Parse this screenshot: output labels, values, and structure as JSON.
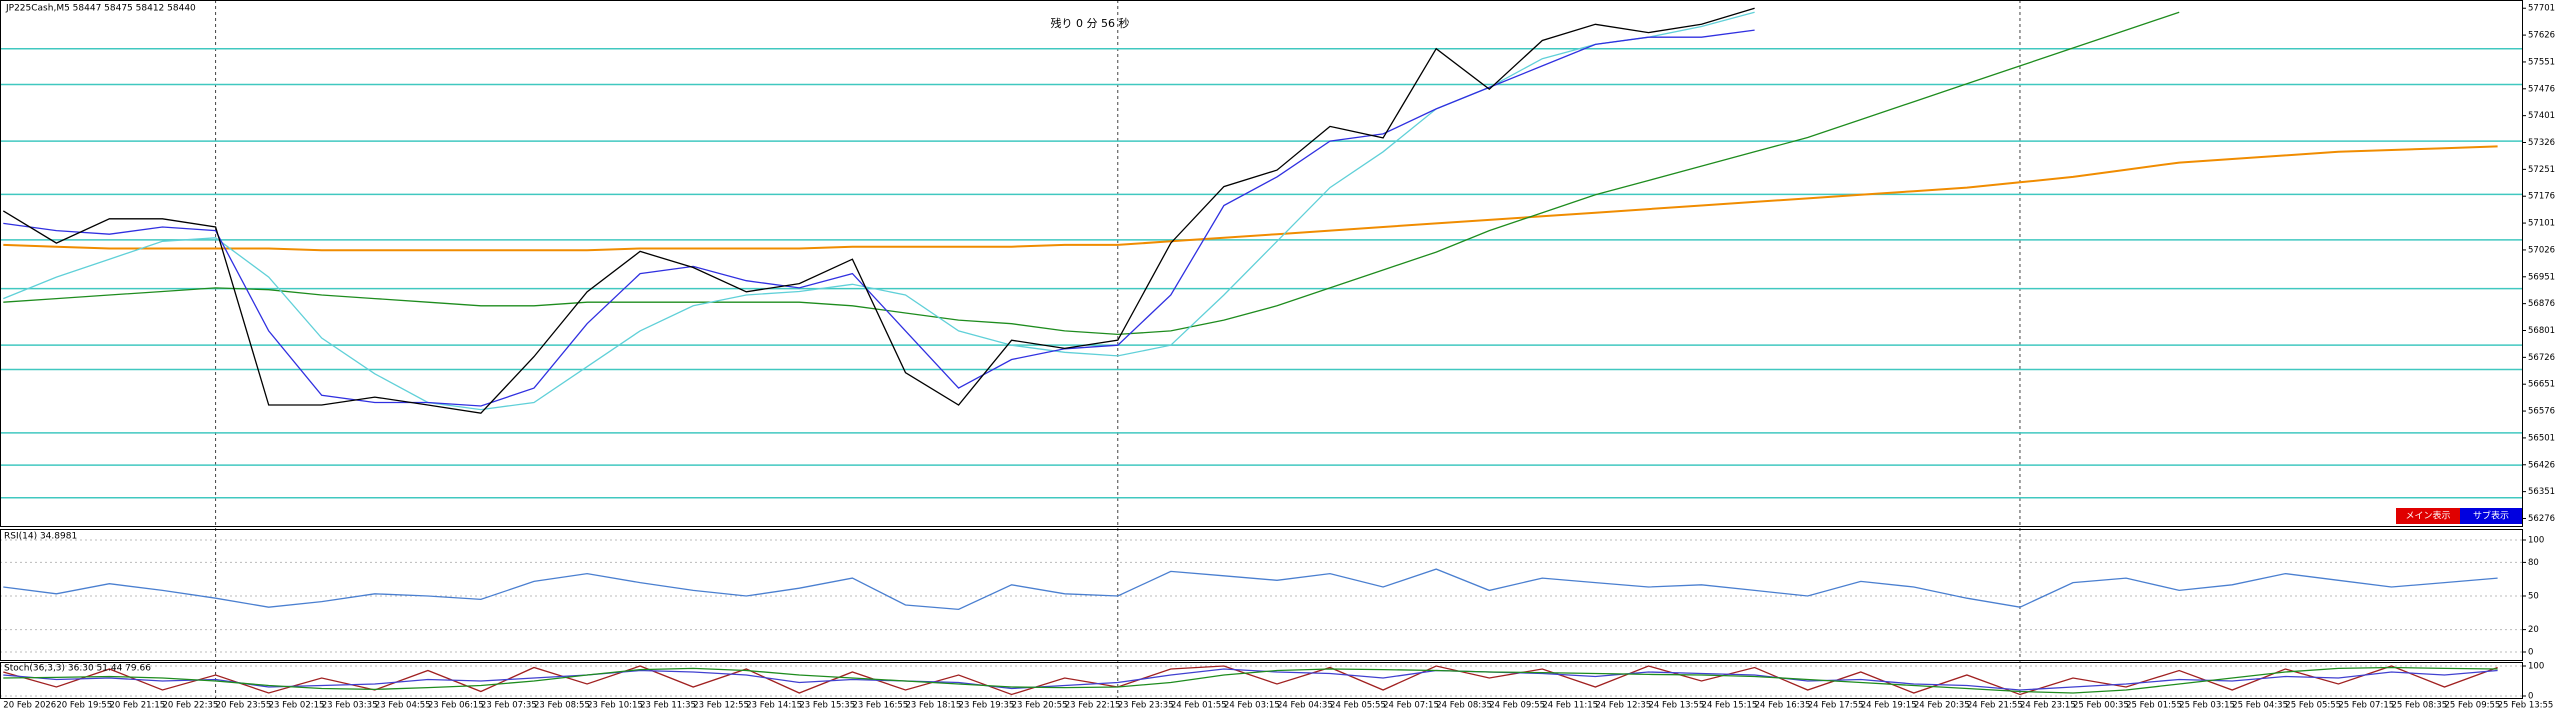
{
  "chart_data": [
    {
      "type": "line",
      "title": "JP225Cash,M5 58447 58475 58412 58440",
      "annotation": "残り 0 分 56 秒",
      "buttons": [
        "メイン表示",
        "サブ表示"
      ],
      "categories": [
        "20 Feb 2026",
        "20 Feb 19:55",
        "20 Feb 21:15",
        "20 Feb 22:35",
        "20 Feb 23:55",
        "23 Feb 02:15",
        "23 Feb 03:35",
        "23 Feb 04:55",
        "23 Feb 06:15",
        "23 Feb 07:35",
        "23 Feb 08:55",
        "23 Feb 10:15",
        "23 Feb 11:35",
        "23 Feb 12:55",
        "23 Feb 14:15",
        "23 Feb 15:35",
        "23 Feb 16:55",
        "23 Feb 18:15",
        "23 Feb 19:35",
        "23 Feb 20:55",
        "23 Feb 22:15",
        "23 Feb 23:35",
        "24 Feb 01:55",
        "24 Feb 03:15",
        "24 Feb 04:35",
        "24 Feb 05:55",
        "24 Feb 07:15",
        "24 Feb 08:35",
        "24 Feb 09:55",
        "24 Feb 11:15",
        "24 Feb 12:35",
        "24 Feb 13:55",
        "24 Feb 15:15",
        "24 Feb 16:35",
        "24 Feb 17:55",
        "24 Feb 19:15",
        "24 Feb 20:35",
        "24 Feb 21:55",
        "24 Feb 23:15",
        "25 Feb 00:35",
        "25 Feb 01:55",
        "25 Feb 03:15",
        "25 Feb 04:35",
        "25 Feb 05:55",
        "25 Feb 07:15",
        "25 Feb 08:35",
        "25 Feb 09:55",
        "25 Feb 13:55"
      ],
      "ylim": [
        56255,
        57724
      ],
      "yticks": [
        56276,
        56351,
        56426,
        56501,
        56576,
        56651,
        56726,
        56801,
        56876,
        56951,
        57026,
        57101,
        57176,
        57251,
        57326,
        57401,
        57476,
        57551,
        57626,
        57701
      ],
      "levels": [
        57588,
        57488,
        57330,
        57181,
        57054,
        56918,
        56760,
        56692,
        56515,
        56425,
        56334
      ],
      "levels_color": "#40c8c0",
      "series": [
        {
          "color": "#f08c00",
          "values": [
            57040,
            57035,
            57030,
            57030,
            57030,
            57030,
            57025,
            57025,
            57025,
            57025,
            57025,
            57025,
            57030,
            57030,
            57030,
            57030,
            57035,
            57035,
            57035,
            57035,
            57040,
            57040,
            57050,
            57060,
            57070,
            57080,
            57090,
            57100,
            57110,
            57120,
            57130,
            57140,
            57150,
            57160,
            57170,
            57180,
            57190,
            57200,
            57215,
            57230,
            57250,
            57270,
            57280,
            57290,
            57300,
            57305,
            57310,
            57315
          ]
        },
        {
          "color": "#1e8c1e",
          "values": [
            56880,
            56890,
            56900,
            56910,
            56920,
            56915,
            56900,
            56890,
            56880,
            56870,
            56870,
            56880,
            56880,
            56880,
            56880,
            56880,
            56870,
            56850,
            56830,
            56820,
            56800,
            56790,
            56800,
            56830,
            56870,
            56920,
            56970,
            57020,
            57080,
            57130,
            57180,
            57220,
            57260,
            57300,
            57340,
            57390,
            57440,
            57490,
            57540,
            57590,
            57640,
            57690,
            null,
            null,
            null,
            null,
            null,
            null
          ]
        },
        {
          "color": "#60d0d8",
          "values": [
            56890,
            56950,
            57000,
            57050,
            57060,
            56950,
            56780,
            56680,
            56600,
            56580,
            56600,
            56700,
            56800,
            56870,
            56900,
            56910,
            56930,
            56900,
            56800,
            56760,
            56740,
            56730,
            56760,
            56900,
            57050,
            57200,
            57300,
            57420,
            57480,
            57560,
            57600,
            57620,
            57650,
            57690,
            null,
            null,
            null,
            null,
            null,
            null,
            null,
            null,
            null,
            null,
            null,
            null,
            null,
            null
          ]
        },
        {
          "color": "#3030e0",
          "values": [
            57100,
            57080,
            57070,
            57090,
            57080,
            56800,
            56620,
            56600,
            56600,
            56590,
            56640,
            56820,
            56960,
            56980,
            56940,
            56920,
            56960,
            56800,
            56640,
            56720,
            56750,
            56760,
            56900,
            57150,
            57230,
            57330,
            57350,
            57420,
            57480,
            57540,
            57600,
            57620,
            57620,
            57640,
            null,
            null,
            null,
            null,
            null,
            null,
            null,
            null,
            null,
            null,
            null,
            null,
            null,
            null
          ]
        },
        {
          "color": "#000000",
          "values": [
            57135,
            57045,
            57113,
            57113,
            57090,
            56593,
            56593,
            56615,
            56593,
            56570,
            56728,
            56909,
            57022,
            56977,
            56909,
            56932,
            57000,
            56683,
            56593,
            56774,
            56751,
            56774,
            57045,
            57203,
            57249,
            57371,
            57339,
            57588,
            57475,
            57611,
            57656,
            57633,
            57656,
            57701,
            null,
            null,
            null,
            null,
            null,
            null,
            null,
            null,
            null,
            null,
            null,
            null,
            null,
            null
          ]
        }
      ]
    },
    {
      "type": "line",
      "title": "RSI(14) 34.8981",
      "ylim": [
        0,
        100
      ],
      "yticks": [
        0,
        20,
        50,
        80,
        100
      ],
      "series": [
        {
          "color": "#4a7fd0",
          "values": [
            58,
            52,
            61,
            55,
            48,
            40,
            45,
            52,
            50,
            47,
            63,
            70,
            62,
            55,
            50,
            57,
            66,
            42,
            38,
            60,
            52,
            50,
            72,
            68,
            64,
            70,
            58,
            74,
            55,
            66,
            62,
            58,
            60,
            55,
            50,
            63,
            58,
            48,
            40,
            62,
            66,
            55,
            60,
            70,
            64,
            58,
            62,
            66
          ]
        }
      ]
    },
    {
      "type": "line",
      "title": "Stoch(36,3,3) 36.30 51.44 79.66",
      "ylim": [
        0,
        100
      ],
      "yticks": [
        0,
        100
      ],
      "series": [
        {
          "color": "#a02020",
          "values": [
            80,
            30,
            90,
            20,
            70,
            10,
            60,
            20,
            85,
            15,
            95,
            40,
            100,
            30,
            90,
            10,
            80,
            20,
            70,
            5,
            60,
            30,
            90,
            100,
            40,
            95,
            20,
            100,
            60,
            90,
            30,
            100,
            50,
            95,
            20,
            80,
            10,
            70,
            5,
            60,
            30,
            85,
            20,
            90,
            40,
            100,
            30,
            95
          ]
        },
        {
          "color": "#4040d0",
          "values": [
            70,
            55,
            60,
            50,
            55,
            30,
            35,
            40,
            55,
            50,
            60,
            70,
            85,
            80,
            70,
            45,
            55,
            50,
            45,
            25,
            35,
            45,
            70,
            90,
            80,
            75,
            60,
            85,
            80,
            75,
            65,
            80,
            75,
            70,
            50,
            55,
            40,
            35,
            20,
            30,
            40,
            55,
            50,
            65,
            60,
            80,
            70,
            85
          ]
        },
        {
          "color": "#1e8c1e",
          "values": [
            60,
            62,
            65,
            60,
            50,
            35,
            25,
            22,
            28,
            35,
            50,
            70,
            88,
            92,
            85,
            70,
            60,
            50,
            40,
            30,
            28,
            30,
            45,
            70,
            85,
            90,
            88,
            85,
            80,
            78,
            75,
            72,
            70,
            65,
            55,
            45,
            35,
            25,
            15,
            10,
            20,
            40,
            60,
            80,
            92,
            95,
            92,
            90
          ]
        }
      ]
    }
  ]
}
